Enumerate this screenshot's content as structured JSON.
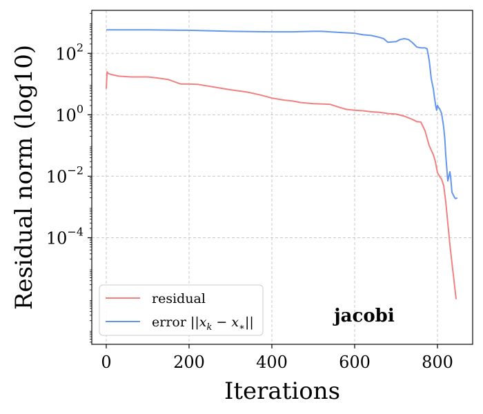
{
  "chart_data": {
    "type": "line",
    "title": "",
    "xlabel": "Iterations",
    "ylabel": "Residual norm (log10)",
    "yscale": "log",
    "xlim": [
      -35,
      885
    ],
    "ylim": [
      3.4e-08,
      2500
    ],
    "xticks": [
      0,
      200,
      400,
      600,
      800
    ],
    "xtick_labels": [
      "0",
      "200",
      "400",
      "600",
      "800"
    ],
    "yticks": [
      0.0001,
      0.01,
      1,
      100
    ],
    "ytick_labels": [
      {
        "base": "10",
        "exp": "−4"
      },
      {
        "base": "10",
        "exp": "−2"
      },
      {
        "base": "10",
        "exp": "0"
      },
      {
        "base": "10",
        "exp": "2"
      }
    ],
    "grid": true,
    "legend_position": "lower-left",
    "annotation": "jacobi",
    "series": [
      {
        "name": "residual",
        "color": "#f08080",
        "x": [
          0,
          2,
          5,
          15,
          30,
          60,
          100,
          120,
          150,
          180,
          200,
          220,
          260,
          300,
          340,
          370,
          400,
          430,
          450,
          470,
          500,
          540,
          560,
          580,
          600,
          620,
          640,
          660,
          680,
          700,
          720,
          740,
          750,
          760,
          770,
          780,
          790,
          795,
          800,
          805,
          810,
          815,
          820,
          825,
          830,
          835,
          840,
          845
        ],
        "y": [
          7,
          25,
          22,
          20,
          18,
          17,
          17,
          16,
          14,
          10,
          10,
          9.8,
          8,
          6.5,
          5.5,
          4.5,
          3.5,
          3,
          2.8,
          2.5,
          2.3,
          2.2,
          1.8,
          1.5,
          1.4,
          1.35,
          1.25,
          1.2,
          1.1,
          1.05,
          0.9,
          0.7,
          0.6,
          0.58,
          0.3,
          0.1,
          0.05,
          0.03,
          0.013,
          0.01,
          0.008,
          0.005,
          0.0015,
          0.0003,
          6e-05,
          1.5e-05,
          4e-06,
          1e-06
        ]
      },
      {
        "name": "error ||x_k − x_*||",
        "color": "#6495ed",
        "x": [
          0,
          100,
          200,
          300,
          400,
          450,
          500,
          520,
          540,
          560,
          600,
          620,
          640,
          660,
          670,
          680,
          700,
          710,
          720,
          730,
          740,
          750,
          760,
          770,
          775,
          780,
          785,
          790,
          793,
          796,
          798,
          800,
          803,
          806,
          810,
          815,
          818,
          820,
          823,
          825,
          830,
          832,
          835,
          840,
          843,
          845,
          848
        ],
        "y": [
          580,
          580,
          560,
          520,
          500,
          500,
          520,
          520,
          500,
          480,
          450,
          400,
          380,
          330,
          300,
          230,
          240,
          280,
          300,
          280,
          220,
          160,
          150,
          150,
          140,
          60,
          15,
          7,
          3.5,
          1.9,
          1.4,
          2,
          1.7,
          1.5,
          1.1,
          0.4,
          0.15,
          0.05,
          0.015,
          0.007,
          0.014,
          0.009,
          0.003,
          0.0022,
          0.0019,
          0.0019,
          0.002
        ]
      }
    ]
  }
}
